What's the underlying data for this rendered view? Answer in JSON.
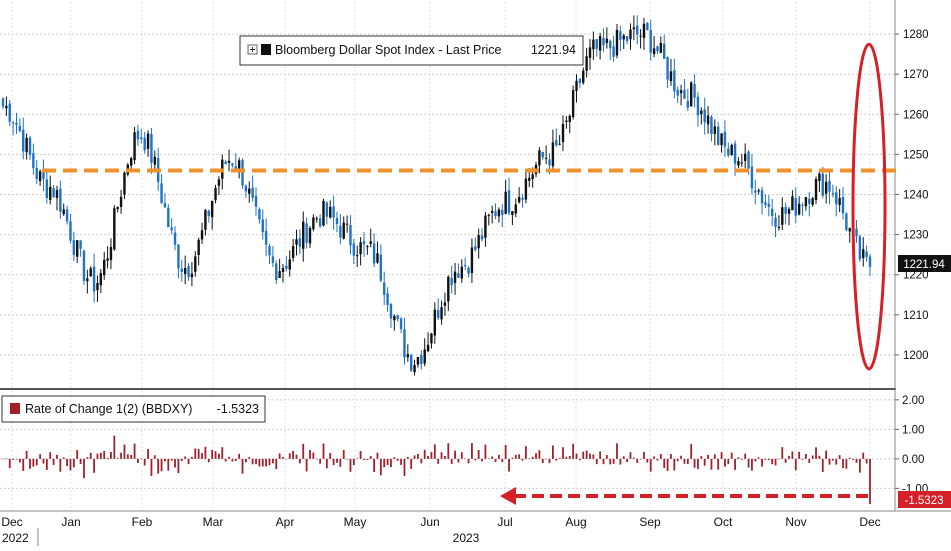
{
  "chart_data": [
    {
      "type": "candlestick",
      "title": "",
      "legend": {
        "series_name": "Bloomberg Dollar Spot Index - Last Price",
        "last_value": "1221.94",
        "placement": "top-center"
      },
      "last_price_label": "1221.94",
      "ylim": [
        1192,
        1288
      ],
      "y_ticks": [
        1200,
        1210,
        1220,
        1230,
        1240,
        1250,
        1260,
        1270,
        1280
      ],
      "y_tick_labels": [
        "1200",
        "1210",
        "1220",
        "1230",
        "1240",
        "1250",
        "1260",
        "1270",
        "1280"
      ],
      "reference_line": {
        "value": 1246,
        "style": "dashed",
        "color": "#f0922b"
      },
      "highlight": {
        "type": "ellipse",
        "color": "#d62027",
        "around": "latest prices (Dec 2023)"
      },
      "colors": {
        "up": "#111111",
        "down": "#1e73c8"
      },
      "x_month_labels": [
        "Dec",
        "Jan",
        "Feb",
        "Mar",
        "Apr",
        "May",
        "Jun",
        "Jul",
        "Aug",
        "Sep",
        "Oct",
        "Nov",
        "Dec"
      ],
      "x_year_labels": [
        "2022",
        "2023"
      ],
      "x": [
        "Dec-22",
        "Jan",
        "Feb",
        "Mar",
        "Apr",
        "May",
        "Jun",
        "Jul",
        "Aug",
        "Sep",
        "Oct",
        "Nov",
        "Dec"
      ],
      "close_anchors": [
        1262,
        1242,
        1218,
        1255,
        1222,
        1249,
        1222,
        1235,
        1226,
        1199,
        1222,
        1238,
        1250,
        1276,
        1280,
        1265,
        1250,
        1235,
        1243,
        1222
      ]
    },
    {
      "type": "bar",
      "legend": {
        "series_name": "Rate of Change 1(2) (BBDXY)",
        "last_value": "-1.5323",
        "placement": "top-left"
      },
      "last_value_label": "-1.5323",
      "ylim": [
        -1.7,
        2.3
      ],
      "y_ticks": [
        2.0,
        1.0,
        0.0,
        -1.0
      ],
      "y_tick_labels": [
        "2.00",
        "1.00",
        "0.00",
        "-1.00"
      ],
      "last_value": -1.5323,
      "color": "#a3202b",
      "annotation": {
        "type": "dashed-arrow",
        "color": "#d62027",
        "direction": "left",
        "meaning": "largest daily drop since July"
      }
    }
  ],
  "colors": {
    "reference": "#f0922b",
    "highlight": "#d62027",
    "up": "#111111",
    "down": "#1e73c8",
    "roc": "#a3202b"
  }
}
